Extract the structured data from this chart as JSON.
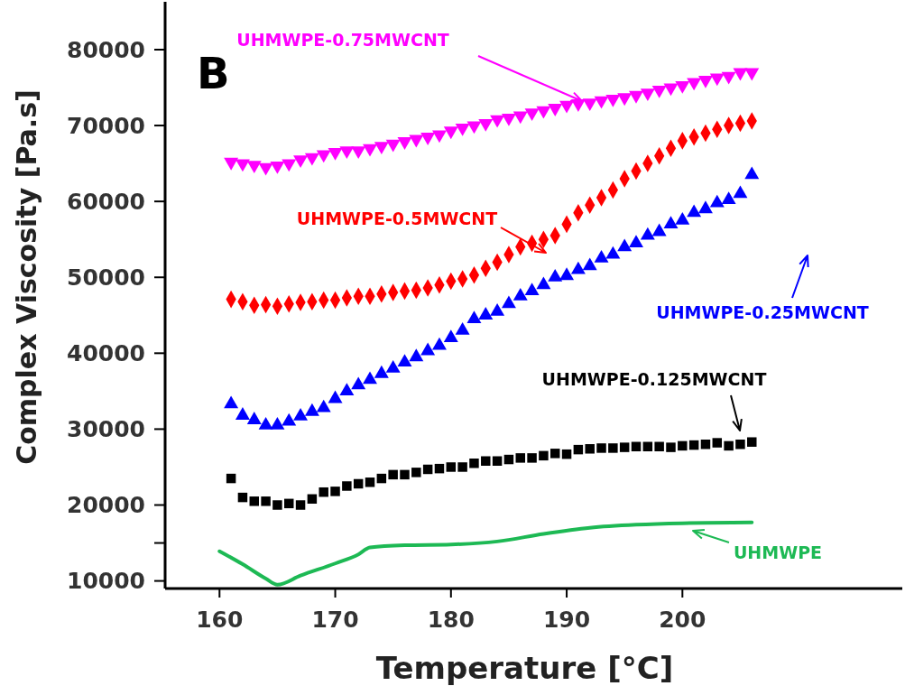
{
  "chart_data": {
    "type": "scatter",
    "xlabel": "Temperature [°C]",
    "ylabel": "Complex Viscosity [Pa.s]",
    "annotations": [
      "B"
    ],
    "xlim": [
      155.3,
      219
    ],
    "xticks": [
      160,
      170,
      180,
      190,
      200
    ],
    "ylim": [
      9000,
      86300
    ],
    "yticks": [
      10000,
      {
        "value": 15000,
        "label": null
      },
      20000,
      30000,
      40000,
      50000,
      60000,
      70000,
      80000
    ],
    "grid": false,
    "x": [
      161,
      162,
      163,
      164,
      165,
      166,
      167,
      168,
      169,
      170,
      171,
      172,
      173,
      174,
      175,
      176,
      177,
      178,
      179,
      180,
      181,
      182,
      183,
      184,
      185,
      186,
      187,
      188,
      189,
      190,
      191,
      192,
      193,
      194,
      195,
      196,
      197,
      198,
      199,
      200,
      201,
      202,
      203,
      204,
      205,
      206
    ],
    "series": [
      {
        "name": "UHMWPE-0.75MWCNT",
        "color": "#ff00ff",
        "marker": "triangle-down",
        "values": [
          65200,
          65000,
          64800,
          64500,
          64700,
          65000,
          65500,
          65800,
          66200,
          66500,
          66700,
          66700,
          67000,
          67300,
          67600,
          67900,
          68200,
          68500,
          68800,
          69300,
          69700,
          70000,
          70300,
          70800,
          71000,
          71300,
          71700,
          72000,
          72300,
          72700,
          72900,
          73000,
          73300,
          73500,
          73700,
          74000,
          74300,
          74700,
          75000,
          75300,
          75700,
          76000,
          76300,
          76500,
          77000,
          77000
        ]
      },
      {
        "name": "UHMWPE-0.5MWCNT",
        "color": "#ff0000",
        "marker": "diamond",
        "values": [
          47100,
          46800,
          46300,
          46400,
          46200,
          46500,
          46700,
          46800,
          47000,
          47000,
          47300,
          47500,
          47500,
          47800,
          48000,
          48200,
          48300,
          48600,
          49000,
          49500,
          49800,
          50300,
          51200,
          52000,
          53000,
          54000,
          54500,
          55000,
          55500,
          57000,
          58500,
          59500,
          60500,
          61500,
          63000,
          64000,
          65000,
          66000,
          67000,
          68000,
          68500,
          69000,
          69500,
          70000,
          70300,
          70600
        ]
      },
      {
        "name": "UHMWPE-0.25MWCNT",
        "color": "#0000ff",
        "marker": "triangle",
        "values": [
          33300,
          31800,
          31200,
          30500,
          30500,
          31000,
          31700,
          32300,
          32800,
          34000,
          35000,
          35800,
          36500,
          37300,
          38000,
          38800,
          39500,
          40300,
          41000,
          42000,
          43000,
          44500,
          45000,
          45500,
          46500,
          47500,
          48200,
          49000,
          50000,
          50200,
          51000,
          51500,
          52500,
          53000,
          54000,
          54500,
          55500,
          56000,
          57000,
          57500,
          58500,
          59000,
          59800,
          60200,
          61000,
          63500
        ]
      },
      {
        "name": "UHMWPE-0.125MWCNT",
        "color": "#000000",
        "marker": "square",
        "values": [
          23500,
          21000,
          20500,
          20500,
          20000,
          20200,
          20000,
          20800,
          21700,
          21800,
          22500,
          22800,
          23000,
          23500,
          24000,
          24000,
          24300,
          24700,
          24800,
          25000,
          25000,
          25500,
          25800,
          25800,
          26000,
          26200,
          26200,
          26500,
          26800,
          26700,
          27300,
          27400,
          27500,
          27500,
          27600,
          27700,
          27700,
          27700,
          27600,
          27800,
          27900,
          28000,
          28200,
          27800,
          28000,
          28300
        ]
      },
      {
        "name": "UHMWPE",
        "color": "#1db954",
        "type": "line",
        "marker": "none",
        "x": [
          160,
          162,
          164,
          165,
          167,
          170,
          172,
          173,
          176,
          180,
          184,
          188,
          192,
          196,
          200,
          206
        ],
        "values": [
          13900,
          12200,
          10300,
          9500,
          10700,
          12300,
          13500,
          14400,
          14700,
          14800,
          15200,
          16200,
          17000,
          17400,
          17600,
          17700
        ]
      }
    ]
  }
}
